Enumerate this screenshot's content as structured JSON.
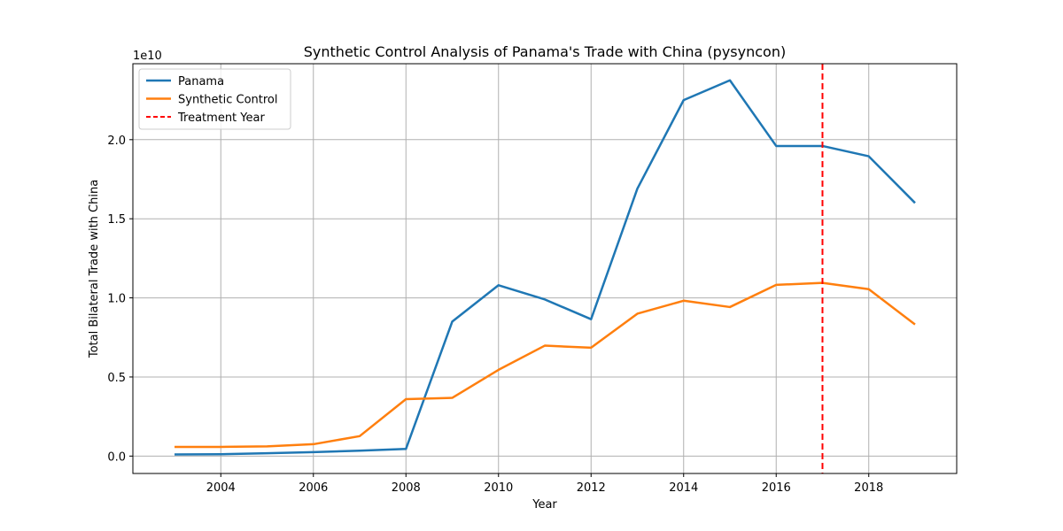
{
  "chart_data": {
    "type": "line",
    "title": "Synthetic Control Analysis of Panama's Trade with China (pysyncon)",
    "xlabel": "Year",
    "ylabel": "Total Bilateral Trade with China",
    "y_offset_text": "1e10",
    "xlim": [
      2002.1,
      2019.9
    ],
    "ylim": [
      -0.11,
      2.48
    ],
    "x_ticks": [
      2004,
      2006,
      2008,
      2010,
      2012,
      2014,
      2016,
      2018
    ],
    "x_tick_labels": [
      "2004",
      "2006",
      "2008",
      "2010",
      "2012",
      "2014",
      "2016",
      "2018"
    ],
    "y_ticks": [
      0.0,
      0.5,
      1.0,
      1.5,
      2.0
    ],
    "y_tick_labels": [
      "0.0",
      "0.5",
      "1.0",
      "1.5",
      "2.0"
    ],
    "grid": true,
    "legend_position": "top-left",
    "x": [
      2003,
      2004,
      2005,
      2006,
      2007,
      2008,
      2009,
      2010,
      2011,
      2012,
      2013,
      2014,
      2015,
      2016,
      2017,
      2018,
      2019
    ],
    "series": [
      {
        "name": "Panama",
        "color": "#1f77b4",
        "style": "solid",
        "values": [
          0.01,
          0.012,
          0.018,
          0.025,
          0.034,
          0.045,
          0.85,
          1.08,
          0.99,
          0.865,
          1.69,
          2.25,
          2.375,
          1.96,
          1.96,
          1.895,
          1.6
        ]
      },
      {
        "name": "Synthetic Control",
        "color": "#ff7f0e",
        "style": "solid",
        "values": [
          0.058,
          0.058,
          0.061,
          0.075,
          0.126,
          0.36,
          0.368,
          0.545,
          0.698,
          0.685,
          0.9,
          0.982,
          0.942,
          1.082,
          1.095,
          1.055,
          0.832
        ]
      }
    ],
    "treatment_line": {
      "name": "Treatment Year",
      "x": 2017,
      "color": "#ff0000",
      "style": "dashed"
    }
  }
}
